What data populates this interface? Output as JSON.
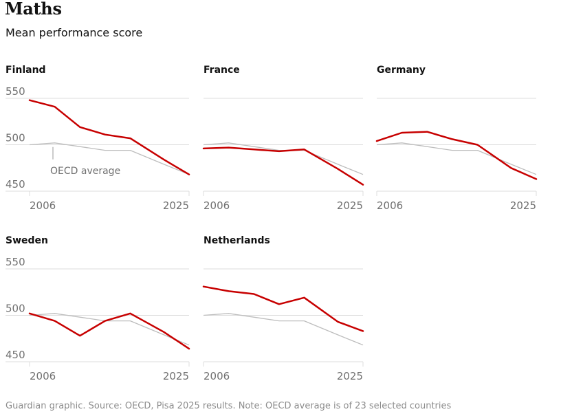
{
  "title": "Maths",
  "subtitle": "Mean performance score",
  "footer": "Guardian graphic. Source: OECD, Pisa 2025 results. Note: OECD average is of 23 selected countries",
  "colors": {
    "country": "#c70000",
    "oecd": "#bdbdbd",
    "grid": "#dcdcdc",
    "text": "#707070"
  },
  "chart_data": {
    "type": "line",
    "years": [
      2006,
      2009,
      2012,
      2015,
      2018,
      2022,
      2025
    ],
    "x_tick_labels": [
      "2006",
      "2025"
    ],
    "y_ticks": [
      550,
      500,
      450
    ],
    "ylim": [
      440,
      550
    ],
    "oecd_label": "OECD average",
    "oecd_average": [
      500,
      502,
      498,
      494,
      494,
      479,
      468
    ],
    "panels": [
      {
        "country": "Finland",
        "values": [
          548,
          541,
          519,
          511,
          507,
          484,
          468
        ]
      },
      {
        "country": "France",
        "values": [
          496,
          497,
          495,
          493,
          495,
          474,
          457
        ]
      },
      {
        "country": "Germany",
        "values": [
          504,
          513,
          514,
          506,
          500,
          475,
          463
        ]
      },
      {
        "country": "Sweden",
        "values": [
          502,
          494,
          478,
          494,
          502,
          482,
          464
        ]
      },
      {
        "country": "Netherlands",
        "values": [
          531,
          526,
          523,
          512,
          519,
          493,
          483
        ]
      }
    ]
  }
}
